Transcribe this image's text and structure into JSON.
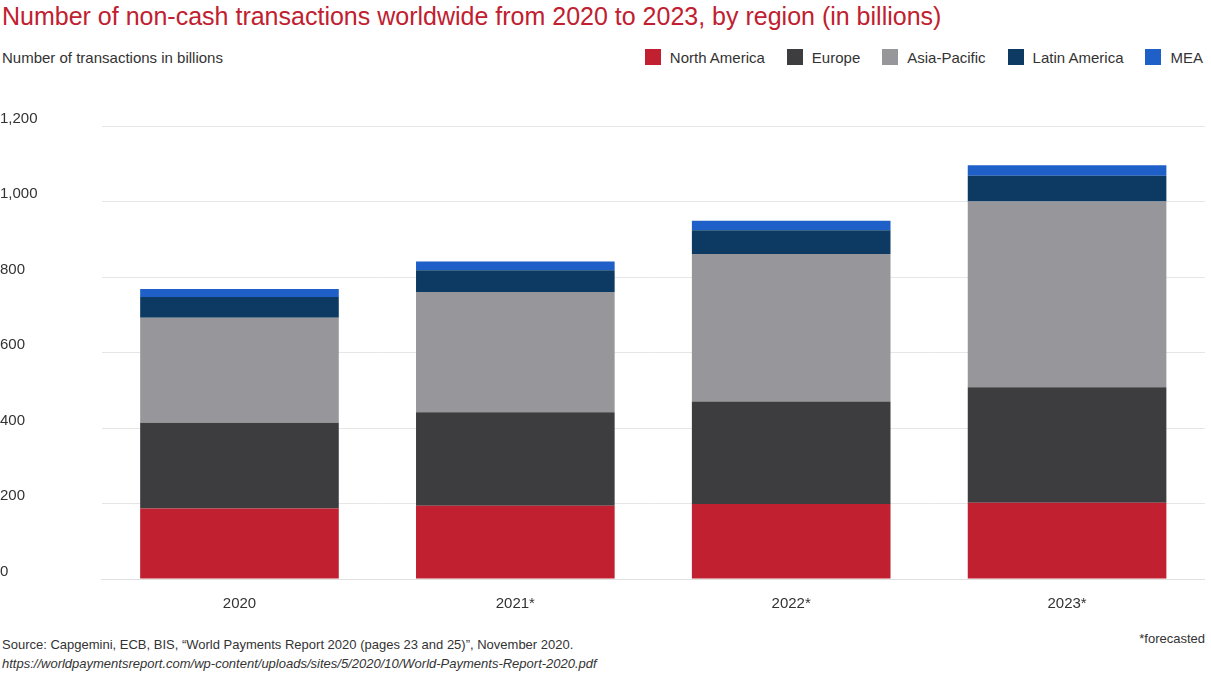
{
  "chart_data": {
    "type": "bar",
    "title": "Number of non-cash transactions worldwide from 2020 to 2023, by region (in billions)",
    "y_label": "Number of transactions in billions",
    "source": "Source: Capgemini, ECB, BIS, “World Payments Report 2020 (pages 23 and 25)”, November 2020.",
    "source_url": "https://worldpaymentsreport.com/wp-content/uploads/sites/5/2020/10/World-Payments-Report-2020.pdf",
    "footnote": "*forecasted",
    "categories": [
      "2020",
      "2021*",
      "2022*",
      "2023*"
    ],
    "series": [
      {
        "name": "North America",
        "color": "#c0202f",
        "values": [
          187,
          194,
          199,
          202
        ]
      },
      {
        "name": "Europe",
        "color": "#3d3d3f",
        "values": [
          227,
          248,
          271,
          306
        ]
      },
      {
        "name": "Asia-Pacific",
        "color": "#97979b",
        "values": [
          278,
          318,
          391,
          492
        ]
      },
      {
        "name": "Latin America",
        "color": "#0c3a63",
        "values": [
          55,
          58,
          63,
          68
        ]
      },
      {
        "name": "MEA",
        "color": "#1f5fc8",
        "values": [
          21,
          23,
          25,
          28
        ]
      }
    ],
    "stacked": true,
    "ylim": [
      0,
      1200
    ],
    "yticks": [
      0,
      200,
      400,
      600,
      800,
      {
        "value": 1000,
        "label": "1,000"
      },
      {
        "value": 1200,
        "label": "1,200"
      }
    ],
    "grid": true,
    "legend": "top-right"
  }
}
